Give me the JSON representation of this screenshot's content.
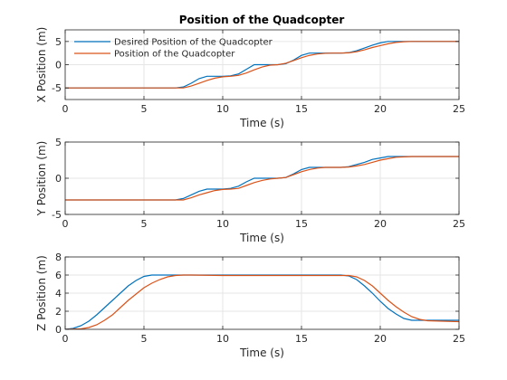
{
  "chart_data": [
    {
      "type": "line",
      "title": "Position of the Quadcopter",
      "xlabel": "Time (s)",
      "ylabel": "X Position (m)",
      "xlim": [
        0,
        25
      ],
      "ylim": [
        -7.5,
        7.5
      ],
      "xticks": [
        0,
        5,
        10,
        15,
        20,
        25
      ],
      "yticks": [
        -5,
        0,
        5
      ],
      "grid": true,
      "legend": "top-left",
      "colors": [
        "#0072BD",
        "#D95319"
      ],
      "series": [
        {
          "name": "Desired Position of the Quadcopter",
          "x": [
            0,
            7.0,
            7.5,
            8.0,
            8.5,
            9.0,
            9.5,
            10.0,
            10.5,
            11.0,
            11.5,
            12.0,
            12.5,
            13.0,
            13.5,
            14.0,
            14.5,
            15.0,
            15.5,
            16.0,
            16.5,
            17.0,
            17.5,
            18.0,
            18.5,
            19.0,
            19.5,
            20.0,
            20.5,
            21.0,
            21.5,
            22.0,
            22.5,
            23.0,
            25
          ],
          "y": [
            -5,
            -5,
            -4.8,
            -4.0,
            -3.0,
            -2.5,
            -2.5,
            -2.5,
            -2.4,
            -2.0,
            -1.0,
            0,
            0,
            0,
            0,
            0.2,
            1.0,
            2.0,
            2.5,
            2.5,
            2.5,
            2.5,
            2.5,
            2.6,
            3.0,
            3.6,
            4.2,
            4.7,
            5.0,
            5.0,
            5.0,
            5.0,
            5.0,
            5.0,
            5.0
          ]
        },
        {
          "name": "Position of the Quadcopter",
          "x": [
            0,
            7.5,
            8.0,
            8.5,
            9.0,
            9.5,
            10.0,
            10.5,
            11.0,
            11.5,
            12.0,
            12.5,
            13.0,
            13.5,
            14.0,
            14.5,
            15.0,
            15.5,
            16.0,
            16.5,
            17.0,
            17.5,
            18.0,
            18.5,
            19.0,
            19.5,
            20.0,
            20.5,
            21.0,
            21.5,
            22.0,
            22.5,
            23.0,
            23.5,
            25
          ],
          "y": [
            -5,
            -5,
            -4.6,
            -4.0,
            -3.4,
            -2.9,
            -2.6,
            -2.5,
            -2.3,
            -1.8,
            -1.1,
            -0.5,
            -0.1,
            0,
            0.3,
            0.9,
            1.5,
            2.0,
            2.3,
            2.45,
            2.5,
            2.5,
            2.55,
            2.8,
            3.2,
            3.7,
            4.1,
            4.5,
            4.8,
            4.95,
            5.0,
            5.0,
            5.0,
            5.0,
            5.0
          ]
        }
      ]
    },
    {
      "type": "line",
      "xlabel": "Time (s)",
      "ylabel": "Y Position (m)",
      "xlim": [
        0,
        25
      ],
      "ylim": [
        -5,
        5
      ],
      "xticks": [
        0,
        5,
        10,
        15,
        20,
        25
      ],
      "yticks": [
        -5,
        0,
        5
      ],
      "grid": true,
      "colors": [
        "#0072BD",
        "#D95319"
      ],
      "series": [
        {
          "x": [
            0,
            7.0,
            7.5,
            8.0,
            8.5,
            9.0,
            9.5,
            10.0,
            10.5,
            11.0,
            11.5,
            12.0,
            12.5,
            13.0,
            13.5,
            14.0,
            14.5,
            15.0,
            15.5,
            16.0,
            16.5,
            17.0,
            17.5,
            18.0,
            18.5,
            19.0,
            19.5,
            20.0,
            20.5,
            21.0,
            21.5,
            22.0,
            22.5,
            23.0,
            25
          ],
          "y": [
            -3,
            -3,
            -2.8,
            -2.3,
            -1.8,
            -1.5,
            -1.5,
            -1.5,
            -1.4,
            -1.1,
            -0.5,
            0,
            0,
            0,
            0,
            0.1,
            0.6,
            1.2,
            1.5,
            1.5,
            1.5,
            1.5,
            1.5,
            1.6,
            1.9,
            2.2,
            2.6,
            2.8,
            3.0,
            3.0,
            3.0,
            3.0,
            3.0,
            3.0,
            3.0
          ]
        },
        {
          "x": [
            0,
            7.5,
            8.0,
            8.5,
            9.0,
            9.5,
            10.0,
            10.5,
            11.0,
            11.5,
            12.0,
            12.5,
            13.0,
            13.5,
            14.0,
            14.5,
            15.0,
            15.5,
            16.0,
            16.5,
            17.0,
            17.5,
            18.0,
            18.5,
            19.0,
            19.5,
            20.0,
            20.5,
            21.0,
            21.5,
            22.0,
            22.5,
            23.0,
            23.5,
            25
          ],
          "y": [
            -3,
            -3,
            -2.7,
            -2.3,
            -2.0,
            -1.7,
            -1.55,
            -1.5,
            -1.4,
            -1.0,
            -0.6,
            -0.3,
            -0.1,
            0,
            0.1,
            0.5,
            0.9,
            1.2,
            1.4,
            1.5,
            1.5,
            1.5,
            1.55,
            1.7,
            1.9,
            2.2,
            2.5,
            2.7,
            2.9,
            2.95,
            3.0,
            3.0,
            3.0,
            3.0,
            3.0
          ]
        }
      ]
    },
    {
      "type": "line",
      "xlabel": "Time (s)",
      "ylabel": "Z Position (m)",
      "xlim": [
        0,
        25
      ],
      "ylim": [
        0,
        8
      ],
      "xticks": [
        0,
        5,
        10,
        15,
        20,
        25
      ],
      "yticks": [
        0,
        2,
        4,
        6,
        8
      ],
      "grid": true,
      "colors": [
        "#0072BD",
        "#D95319"
      ],
      "series": [
        {
          "x": [
            0,
            0.5,
            1.0,
            1.5,
            2.0,
            2.5,
            3.0,
            3.5,
            4.0,
            4.5,
            5.0,
            5.5,
            6.0,
            7.0,
            10.0,
            15.0,
            17.5,
            18.0,
            18.5,
            19.0,
            19.5,
            20.0,
            20.5,
            21.0,
            21.5,
            22.0,
            23.0,
            25
          ],
          "y": [
            0,
            0.1,
            0.4,
            0.9,
            1.6,
            2.4,
            3.2,
            4.0,
            4.8,
            5.4,
            5.85,
            6.0,
            6.0,
            6.0,
            6.0,
            6.0,
            6.0,
            5.9,
            5.5,
            4.8,
            4.0,
            3.1,
            2.3,
            1.7,
            1.2,
            1.0,
            1.0,
            1.0
          ]
        },
        {
          "x": [
            0,
            1.0,
            1.5,
            2.0,
            2.5,
            3.0,
            3.5,
            4.0,
            4.5,
            5.0,
            5.5,
            6.0,
            6.5,
            7.0,
            7.5,
            8.0,
            10.0,
            15.0,
            18.0,
            18.5,
            19.0,
            19.5,
            20.0,
            20.5,
            21.0,
            21.5,
            22.0,
            22.5,
            23.0,
            24.0,
            25
          ],
          "y": [
            0,
            0.05,
            0.2,
            0.5,
            1.0,
            1.6,
            2.4,
            3.2,
            3.9,
            4.6,
            5.1,
            5.5,
            5.8,
            5.95,
            6.0,
            6.0,
            5.95,
            5.95,
            5.95,
            5.8,
            5.4,
            4.8,
            4.0,
            3.2,
            2.5,
            1.9,
            1.4,
            1.1,
            0.95,
            0.9,
            0.85
          ]
        }
      ]
    }
  ]
}
